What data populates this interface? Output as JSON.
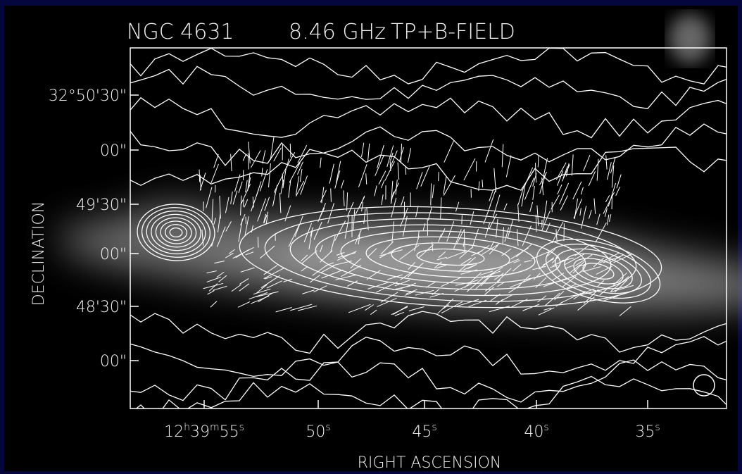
{
  "header": {
    "object": "NGC 4631",
    "frequency": "8.46 GHz",
    "mode": "TP+B-FIELD"
  },
  "axes": {
    "y_label": "DECLINATION",
    "x_label": "RIGHT ASCENSION",
    "dec_ticks": [
      "32°50'30\"",
      "00\"",
      "49'30\"",
      "00\"",
      "48'30\"",
      "00\""
    ],
    "ra_ticks": [
      {
        "parts": [
          "12",
          "h",
          "39",
          "m",
          "55",
          "s"
        ]
      },
      {
        "parts": [
          "50",
          "s"
        ]
      },
      {
        "parts": [
          "45",
          "s"
        ]
      },
      {
        "parts": [
          "40",
          "s"
        ]
      },
      {
        "parts": [
          "35",
          "s"
        ]
      }
    ]
  }
}
